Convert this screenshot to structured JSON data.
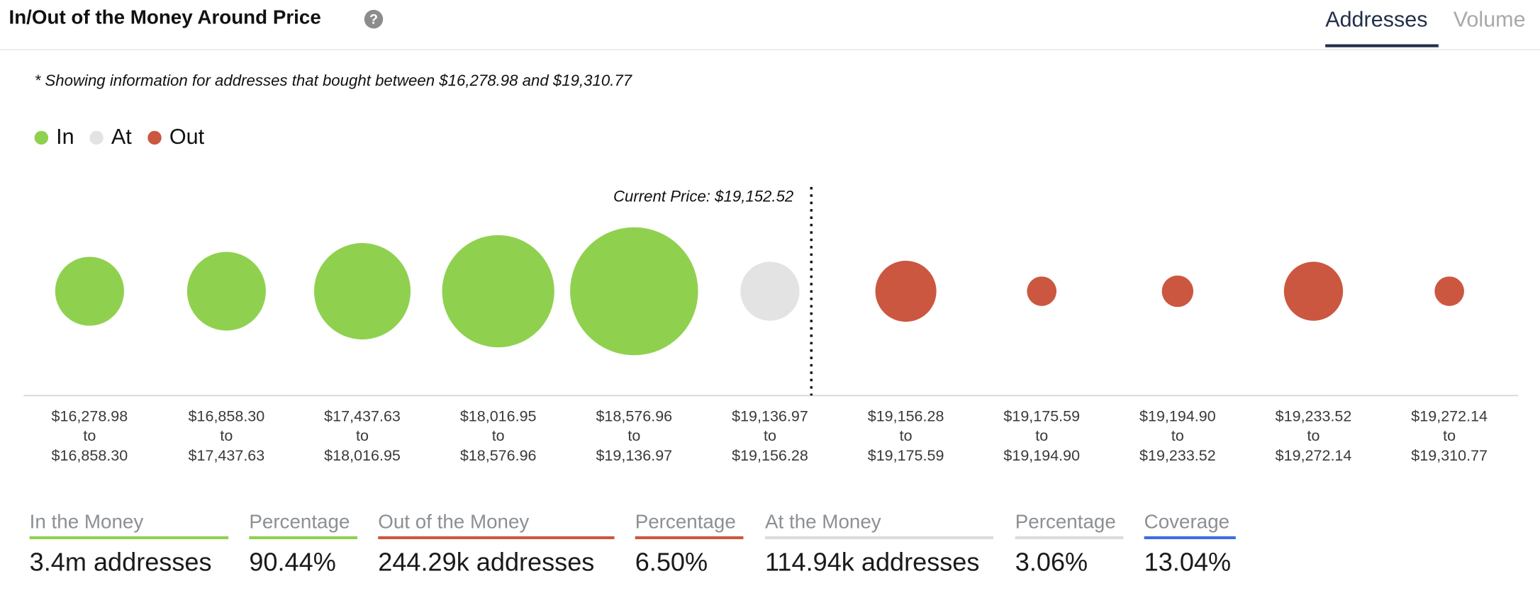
{
  "header": {
    "title": "In/Out of the Money Around Price",
    "help_icon": "question-mark-icon",
    "tabs": [
      "Addresses",
      "Volume"
    ],
    "active_tab": "Addresses"
  },
  "note": "* Showing information for addresses that bought between $16,278.98 and $19,310.77",
  "legend": [
    {
      "label": "In",
      "color": "#8fd14f"
    },
    {
      "label": "At",
      "color": "#e3e3e3"
    },
    {
      "label": "Out",
      "color": "#cb5740"
    }
  ],
  "chart_data": {
    "type": "scatter",
    "current_price_label": "Current Price: $19,152.52",
    "buckets": [
      {
        "from": "$16,278.98",
        "to": "$16,858.30",
        "status": "In",
        "size": 35
      },
      {
        "from": "$16,858.30",
        "to": "$17,437.63",
        "status": "In",
        "size": 40
      },
      {
        "from": "$17,437.63",
        "to": "$18,016.95",
        "status": "In",
        "size": 49
      },
      {
        "from": "$18,016.95",
        "to": "$18,576.96",
        "status": "In",
        "size": 57
      },
      {
        "from": "$18,576.96",
        "to": "$19,136.97",
        "status": "In",
        "size": 65
      },
      {
        "from": "$19,136.97",
        "to": "$19,156.28",
        "status": "At",
        "size": 30
      },
      {
        "from": "$19,156.28",
        "to": "$19,175.59",
        "status": "Out",
        "size": 31
      },
      {
        "from": "$19,175.59",
        "to": "$19,194.90",
        "status": "Out",
        "size": 15
      },
      {
        "from": "$19,194.90",
        "to": "$19,233.52",
        "status": "Out",
        "size": 16
      },
      {
        "from": "$19,233.52",
        "to": "$19,272.14",
        "status": "Out",
        "size": 30
      },
      {
        "from": "$19,272.14",
        "to": "$19,310.77",
        "status": "Out",
        "size": 15
      }
    ],
    "range_joiner": "to",
    "colors": {
      "In": "#8fd14f",
      "At": "#e3e3e3",
      "Out": "#cb5740"
    }
  },
  "stats": [
    {
      "label": "In the Money",
      "value": "3.4m addresses",
      "color": "#8fd14f"
    },
    {
      "label": "Percentage",
      "value": "90.44%",
      "color": "#8fd14f"
    },
    {
      "label": "Out of the Money",
      "value": "244.29k addresses",
      "color": "#cb5740"
    },
    {
      "label": "Percentage",
      "value": "6.50%",
      "color": "#cb5740"
    },
    {
      "label": "At the Money",
      "value": "114.94k addresses",
      "color": "#dcdcdc"
    },
    {
      "label": "Percentage",
      "value": "3.06%",
      "color": "#dcdcdc"
    },
    {
      "label": "Coverage",
      "value": "13.04%",
      "color": "#3d6ee0"
    }
  ]
}
